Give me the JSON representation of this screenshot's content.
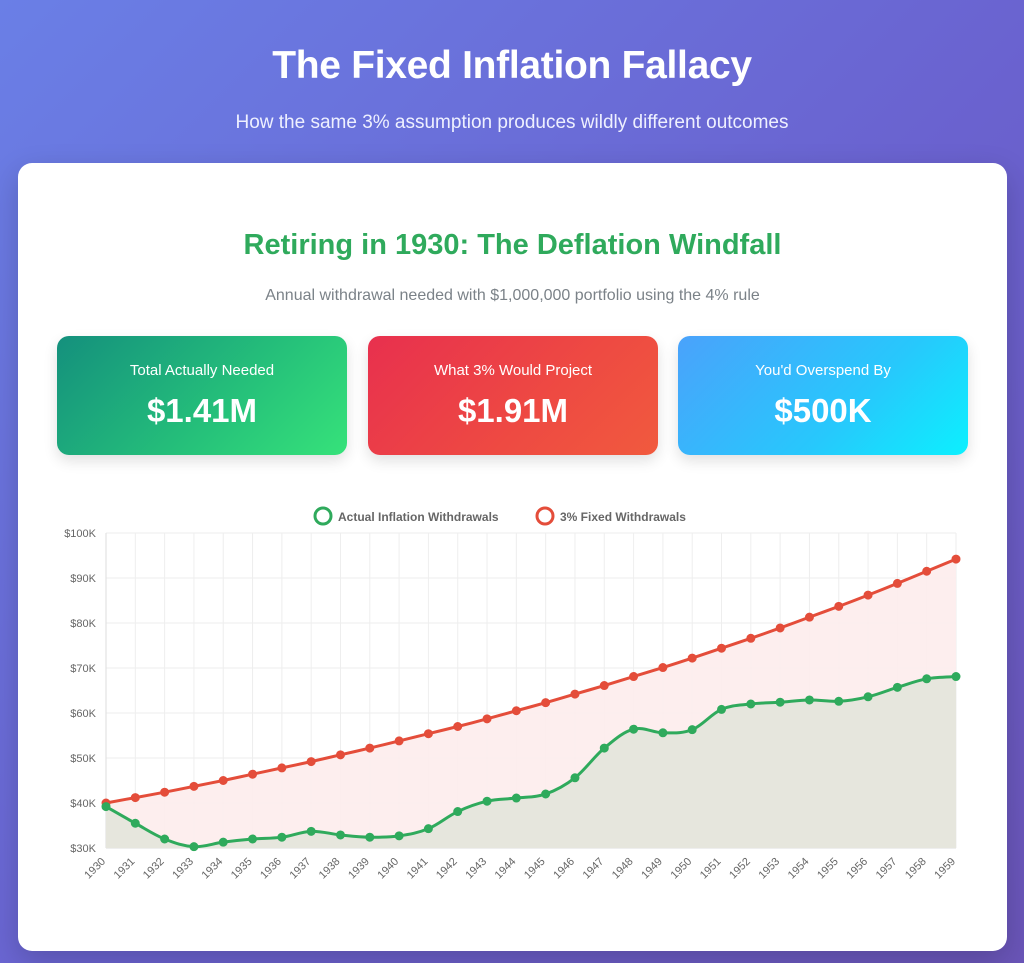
{
  "header": {
    "title": "The Fixed Inflation Fallacy",
    "subtitle": "How the same 3% assumption produces wildly different outcomes"
  },
  "card": {
    "title": "Retiring in 1930: The Deflation Windfall",
    "subtitle": "Annual withdrawal needed with $1,000,000 portfolio using the 4% rule"
  },
  "stats": [
    {
      "label": "Total Actually Needed",
      "value": "$1.41M"
    },
    {
      "label": "What 3% Would Project",
      "value": "$1.91M"
    },
    {
      "label": "You'd Overspend By",
      "value": "$500K"
    }
  ],
  "colors": {
    "actual": "#2faa5c",
    "fixed": "#e44d3a",
    "actual_fill": "#e6e6dd",
    "fixed_fill": "#fdecec",
    "grid": "#eeeeee",
    "tick": "#666666"
  },
  "chart_data": {
    "type": "line",
    "legend_position": "top",
    "grid": true,
    "categories": [
      "1930",
      "1931",
      "1932",
      "1933",
      "1934",
      "1935",
      "1936",
      "1937",
      "1938",
      "1939",
      "1940",
      "1941",
      "1942",
      "1943",
      "1944",
      "1945",
      "1946",
      "1947",
      "1948",
      "1949",
      "1950",
      "1951",
      "1952",
      "1953",
      "1954",
      "1955",
      "1956",
      "1957",
      "1958",
      "1959"
    ],
    "yticks": [
      "$30K",
      "$40K",
      "$50K",
      "$60K",
      "$70K",
      "$80K",
      "$90K",
      "$100K"
    ],
    "ylim": [
      30000,
      100000
    ],
    "series": [
      {
        "name": "Actual Inflation Withdrawals",
        "values": [
          39200,
          35500,
          32000,
          30300,
          31300,
          32000,
          32400,
          33700,
          32900,
          32400,
          32700,
          34300,
          38100,
          40400,
          41100,
          42000,
          45600,
          52200,
          56400,
          55600,
          56300,
          60800,
          62000,
          62400,
          62900,
          62600,
          63600,
          65700,
          67600,
          68100
        ]
      },
      {
        "name": "3% Fixed Withdrawals",
        "values": [
          40000,
          41200,
          42400,
          43700,
          45000,
          46400,
          47800,
          49200,
          50700,
          52200,
          53800,
          55400,
          57000,
          58700,
          60500,
          62300,
          64200,
          66100,
          68100,
          70100,
          72200,
          74400,
          76600,
          78900,
          81300,
          83700,
          86200,
          88800,
          91500,
          94200
        ]
      }
    ]
  }
}
